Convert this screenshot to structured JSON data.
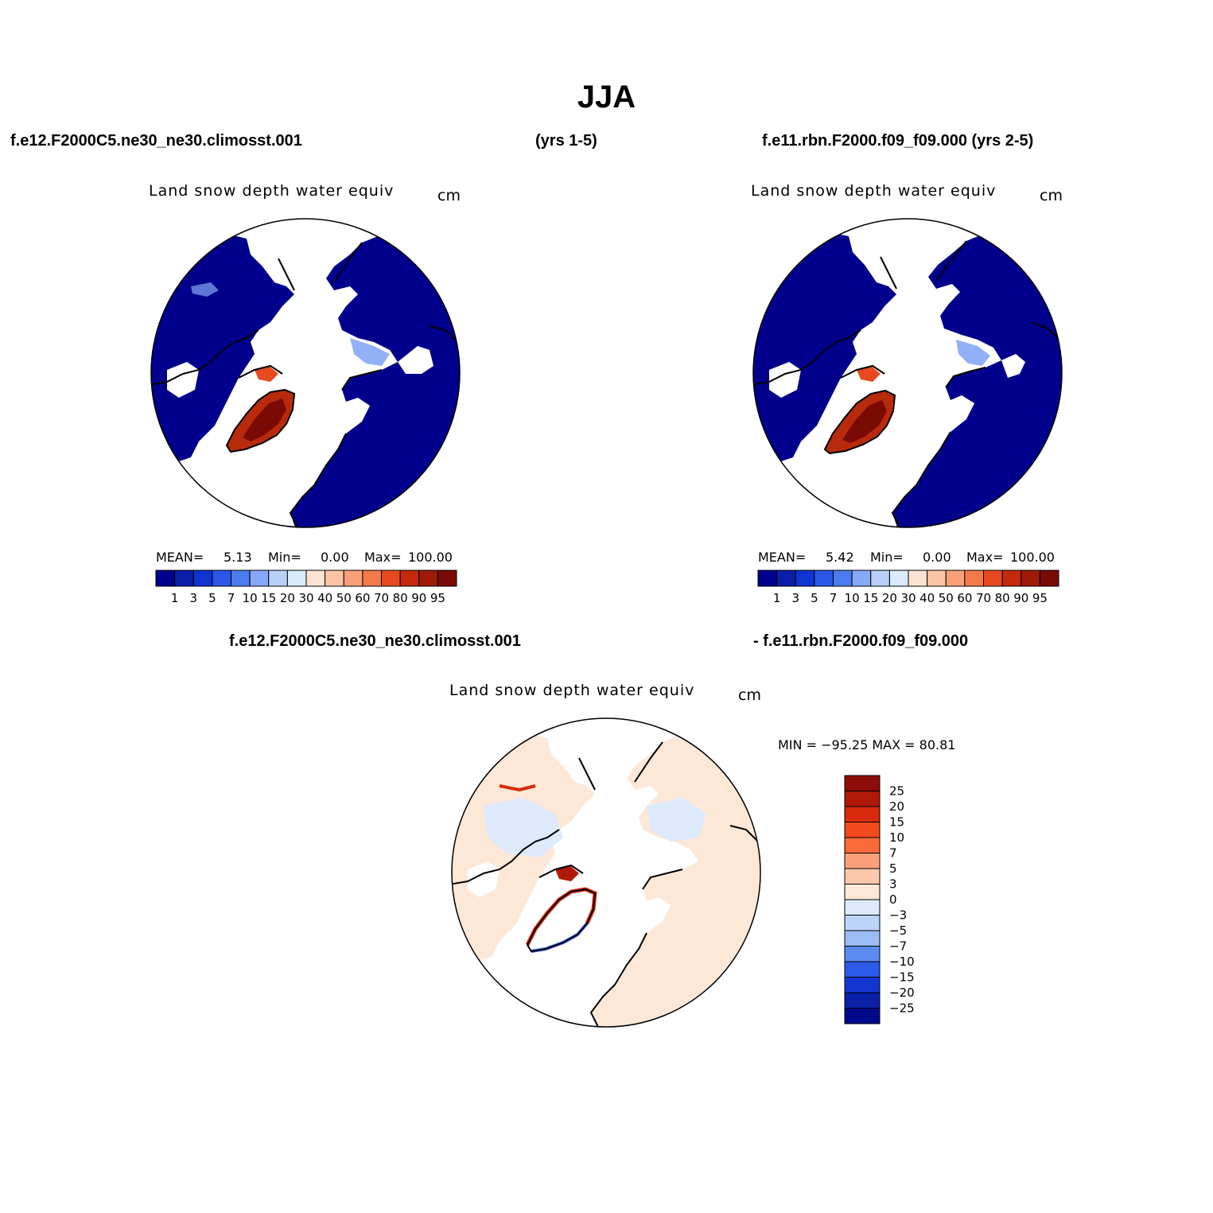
{
  "title": "JJA",
  "case1": {
    "name": "f.e12.F2000C5.ne30_ne30.climosst.001",
    "years": "(yrs 1-5)"
  },
  "case2": {
    "name": "f.e11.rbn.F2000.f09_f09.000 (yrs 2-5)"
  },
  "diff": {
    "label1": "f.e12.F2000C5.ne30_ne30.climosst.001",
    "label2": "- f.e11.rbn.F2000.f09_f09.000"
  },
  "panels": {
    "p1": {
      "var": "Land snow depth water equiv",
      "units": "cm",
      "mean_label": "MEAN=",
      "mean": "5.13",
      "min_label": "Min=",
      "min": "0.00",
      "max_label": "Max=",
      "max": "100.00"
    },
    "p2": {
      "var": "Land snow depth water equiv",
      "units": "cm",
      "mean_label": "MEAN=",
      "mean": "5.42",
      "min_label": "Min=",
      "min": "0.00",
      "max_label": "Max=",
      "max": "100.00"
    },
    "p3": {
      "var": "Land snow depth water equiv",
      "units": "cm",
      "minmax": "MIN = −95.25 MAX =   80.81"
    }
  },
  "colorbar_abs": {
    "labels": [
      "1",
      "3",
      "5",
      "7",
      "10",
      "15",
      "20",
      "30",
      "40",
      "50",
      "60",
      "70",
      "80",
      "90",
      "95"
    ],
    "colors": [
      "#00008c",
      "#0a1ea8",
      "#1034d2",
      "#2c56e6",
      "#4a7cf0",
      "#86a8f6",
      "#b8d0f8",
      "#d8eafc",
      "#fde4d2",
      "#fcc4a6",
      "#f8a07a",
      "#f47a4a",
      "#e84a20",
      "#c42a0c",
      "#a01a08",
      "#7a0a04"
    ]
  },
  "colorbar_diff": {
    "labels": [
      "25",
      "20",
      "15",
      "10",
      "7",
      "5",
      "3",
      "0",
      "−3",
      "−5",
      "−7",
      "−10",
      "−15",
      "−20",
      "−25"
    ],
    "colors": [
      "#8c0c08",
      "#b01808",
      "#d82a0c",
      "#f24a1c",
      "#fc6a3a",
      "#fca07c",
      "#fcc8ac",
      "#fde8d8",
      "#dceafc",
      "#bcd4f8",
      "#9cbcf6",
      "#5c8cf0",
      "#2c5ae8",
      "#1436d0",
      "#0a20a8",
      "#00088c"
    ]
  }
}
